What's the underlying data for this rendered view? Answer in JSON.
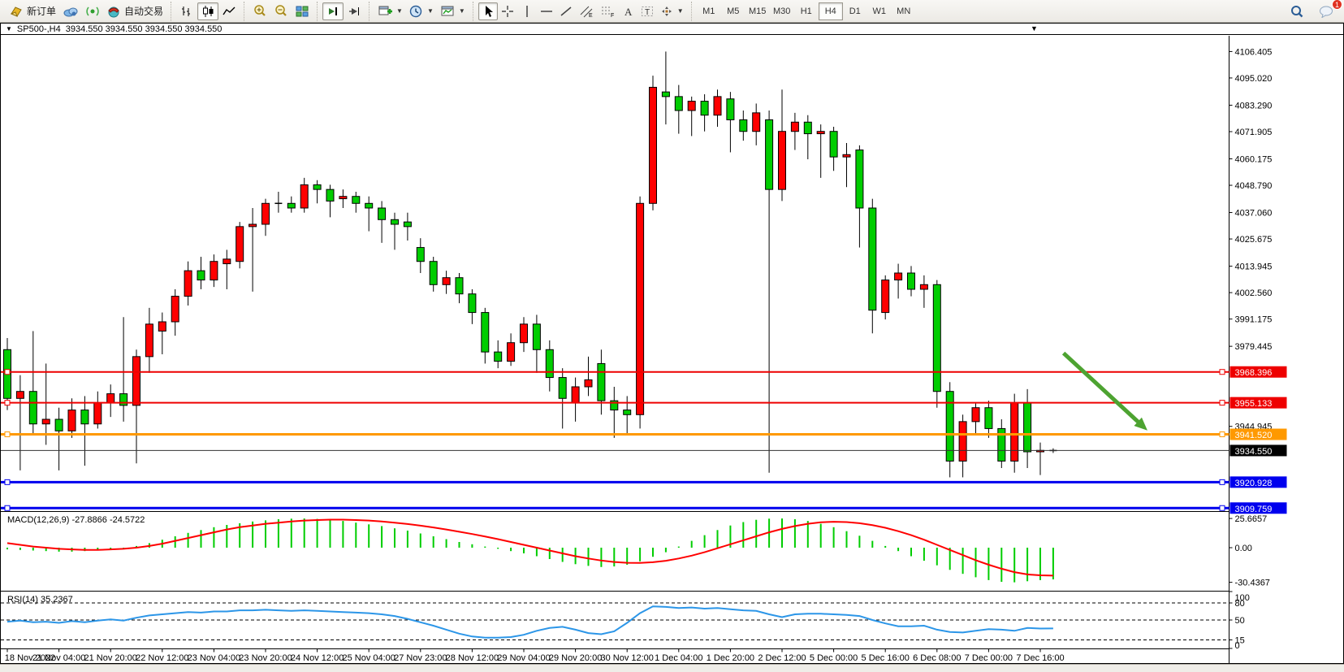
{
  "toolbar": {
    "groups": [
      {
        "items": [
          {
            "name": "new-order-button",
            "icon": "new-order",
            "label": "新订单"
          },
          {
            "name": "data-center-button",
            "icon": "cloud"
          },
          {
            "name": "signals-button",
            "icon": "broadcast"
          },
          {
            "name": "autotrading-button",
            "icon": "autotrade",
            "label": "自动交易"
          }
        ]
      },
      {
        "items": [
          {
            "name": "bar-chart-button",
            "icon": "bar-chart"
          },
          {
            "name": "candle-chart-button",
            "icon": "candle-chart",
            "pressed": true
          },
          {
            "name": "line-chart-button",
            "icon": "line-chart"
          }
        ]
      },
      {
        "items": [
          {
            "name": "zoom-in-button",
            "icon": "zoom-in"
          },
          {
            "name": "zoom-out-button",
            "icon": "zoom-out"
          },
          {
            "name": "tile-windows-button",
            "icon": "tile-windows"
          }
        ]
      },
      {
        "items": [
          {
            "name": "chart-shift-button",
            "icon": "chart-shift",
            "pressed": true
          },
          {
            "name": "auto-scroll-button",
            "icon": "auto-scroll"
          }
        ]
      },
      {
        "items": [
          {
            "name": "new-chart-button",
            "icon": "new-chart",
            "dropdown": true
          },
          {
            "name": "profiles-button",
            "icon": "clock",
            "dropdown": true
          },
          {
            "name": "indicators-button",
            "icon": "indicators",
            "dropdown": true
          }
        ]
      },
      {
        "items": [
          {
            "name": "cursor-button",
            "icon": "cursor",
            "pressed": true
          },
          {
            "name": "crosshair-button",
            "icon": "crosshair"
          },
          {
            "name": "vline-button",
            "icon": "vline"
          },
          {
            "name": "hline-button",
            "icon": "hline"
          },
          {
            "name": "trendline-button",
            "icon": "trendline"
          },
          {
            "name": "channel-button",
            "icon": "channel"
          },
          {
            "name": "fibo-button",
            "icon": "fibo"
          },
          {
            "name": "text-button",
            "icon": "text"
          },
          {
            "name": "label-button",
            "icon": "label"
          },
          {
            "name": "arrows-button",
            "icon": "arrows",
            "dropdown": true
          }
        ]
      }
    ],
    "timeframes": [
      {
        "label": "M1"
      },
      {
        "label": "M5"
      },
      {
        "label": "M15"
      },
      {
        "label": "M30"
      },
      {
        "label": "H1"
      },
      {
        "label": "H4",
        "pressed": true
      },
      {
        "label": "D1"
      },
      {
        "label": "W1"
      },
      {
        "label": "MN"
      }
    ],
    "right": [
      {
        "name": "search-button",
        "icon": "search"
      },
      {
        "name": "chat-button",
        "icon": "chat",
        "badge": "1"
      }
    ]
  },
  "chart_window": {
    "symbol_title": "SP500-,H4",
    "quotes": "3934.550 3934.550 3934.550 3934.550",
    "window_marker": "▼"
  },
  "chart_data": {
    "type": "candlestick",
    "symbol": "SP500-",
    "timeframe": "H4",
    "note": "red = bullish (CN convention), green = bearish; candles as [open,high,low,close]",
    "candles": [
      [
        3978,
        3983,
        3952,
        3957
      ],
      [
        3957,
        3967,
        3926,
        3960
      ],
      [
        3960,
        3986,
        3942,
        3946
      ],
      [
        3946,
        3972,
        3937,
        3948
      ],
      [
        3948,
        3953,
        3926,
        3943
      ],
      [
        3943,
        3957,
        3940,
        3952
      ],
      [
        3952,
        3958,
        3928,
        3946
      ],
      [
        3946,
        3960,
        3944,
        3955
      ],
      [
        3955,
        3963,
        3949,
        3959
      ],
      [
        3959,
        3992,
        3947,
        3954
      ],
      [
        3954,
        3978,
        3929,
        3975
      ],
      [
        3975,
        3996,
        3968,
        3989
      ],
      [
        3986,
        3994,
        3976,
        3990
      ],
      [
        3990,
        4004,
        3984,
        4001
      ],
      [
        4001,
        4016,
        3997,
        4012
      ],
      [
        4012,
        4018,
        4004,
        4008
      ],
      [
        4008,
        4019,
        4005,
        4016
      ],
      [
        4015,
        4021,
        4004,
        4017
      ],
      [
        4016,
        4033,
        4013,
        4031
      ],
      [
        4031,
        4039,
        4003,
        4032
      ],
      [
        4032,
        4043,
        4027,
        4041
      ],
      [
        4041,
        4046,
        4037,
        4041
      ],
      [
        4041,
        4044,
        4037,
        4039
      ],
      [
        4039,
        4052,
        4037,
        4049
      ],
      [
        4049,
        4051,
        4041,
        4047
      ],
      [
        4047,
        4049,
        4035,
        4042
      ],
      [
        4043,
        4047,
        4039,
        4044
      ],
      [
        4044,
        4046,
        4037,
        4041
      ],
      [
        4041,
        4044,
        4029,
        4039
      ],
      [
        4039,
        4042,
        4024,
        4034
      ],
      [
        4034,
        4037,
        4021,
        4032
      ],
      [
        4033,
        4037,
        4025,
        4031
      ],
      [
        4022,
        4026,
        4011,
        4016
      ],
      [
        4016,
        4018,
        4003,
        4006
      ],
      [
        4006,
        4012,
        4002,
        4009
      ],
      [
        4009,
        4011,
        3998,
        4002
      ],
      [
        4002,
        4004,
        3989,
        3994
      ],
      [
        3994,
        3996,
        3972,
        3977
      ],
      [
        3977,
        3982,
        3970,
        3973
      ],
      [
        3973,
        3985,
        3971,
        3981
      ],
      [
        3981,
        3992,
        3977,
        3989
      ],
      [
        3989,
        3993,
        3968,
        3978
      ],
      [
        3978,
        3982,
        3960,
        3966
      ],
      [
        3966,
        3970,
        3944,
        3957
      ],
      [
        3955,
        3966,
        3947,
        3962
      ],
      [
        3962,
        3975,
        3958,
        3965
      ],
      [
        3972,
        3978,
        3950,
        3956
      ],
      [
        3956,
        3962,
        3940,
        3952
      ],
      [
        3952,
        3958,
        3941,
        3950
      ],
      [
        3950,
        4044,
        3944,
        4041
      ],
      [
        4041,
        4096,
        4038,
        4091
      ],
      [
        4089,
        4106.4,
        4075,
        4087
      ],
      [
        4087,
        4092,
        4071,
        4081
      ],
      [
        4081,
        4087,
        4070,
        4085
      ],
      [
        4085,
        4088,
        4072,
        4079
      ],
      [
        4079,
        4090,
        4074,
        4087
      ],
      [
        4086,
        4089,
        4063,
        4077
      ],
      [
        4077,
        4081,
        4068,
        4072
      ],
      [
        4072,
        4084,
        4066,
        4080
      ],
      [
        4077,
        4081,
        3925,
        4047
      ],
      [
        4047,
        4090,
        4042,
        4072
      ],
      [
        4072,
        4080,
        4064,
        4076
      ],
      [
        4076,
        4079,
        4060,
        4071
      ],
      [
        4071,
        4075,
        4052,
        4072
      ],
      [
        4072,
        4074,
        4055,
        4061
      ],
      [
        4061,
        4067,
        4048,
        4062
      ],
      [
        4064,
        4066,
        4022,
        4039
      ],
      [
        4039,
        4043,
        3985,
        3995
      ],
      [
        3994,
        4010,
        3991,
        4008
      ],
      [
        4008,
        4015,
        4000,
        4011
      ],
      [
        4011,
        4014,
        4001,
        4004
      ],
      [
        4004,
        4010,
        3996,
        4006
      ],
      [
        4006,
        4008,
        3953,
        3960
      ],
      [
        3960,
        3964,
        3923,
        3930
      ],
      [
        3930,
        3950,
        3923,
        3947
      ],
      [
        3947,
        3955,
        3942,
        3953
      ],
      [
        3953,
        3956,
        3940,
        3944
      ],
      [
        3944,
        3948,
        3927,
        3930
      ],
      [
        3930,
        3959,
        3925,
        3955
      ],
      [
        3955,
        3961,
        3927,
        3934
      ],
      [
        3934,
        3938,
        3924,
        3934.6
      ],
      [
        3934.5,
        3935.5,
        3933.5,
        3934.55
      ]
    ],
    "price_axis_ticks": [
      "4106.405",
      "4095.020",
      "4083.290",
      "4071.905",
      "4060.175",
      "4048.790",
      "4037.060",
      "4025.675",
      "4013.945",
      "4002.560",
      "3991.175",
      "3979.445",
      "3944.945"
    ],
    "hlines": [
      {
        "price": 3968.396,
        "label": "3968.396",
        "color": "#EE0000",
        "width": 2
      },
      {
        "price": 3955.133,
        "label": "3955.133",
        "color": "#EE0000",
        "width": 2
      },
      {
        "price": 3941.52,
        "label": "3941.520",
        "color": "#FF9900",
        "width": 3
      },
      {
        "price": 3920.928,
        "label": "3920.928",
        "color": "#0000EE",
        "width": 3
      },
      {
        "price": 3909.759,
        "label": "3909.759",
        "color": "#0000EE",
        "width": 3
      }
    ],
    "current_price": {
      "price": 3934.55,
      "label": "3934.550",
      "color": "#000000"
    },
    "annotation_arrow": {
      "from_bar": 81.8,
      "from_price": 3976.5,
      "to_bar": 88.3,
      "to_price": 3943.2,
      "color": "#4DA331"
    },
    "macd": {
      "label": "MACD(12,26,9) -27.8866 -24.5722",
      "axis_ticks": [
        "25.6657",
        "0.00",
        "-30.4367"
      ],
      "axis_values": [
        25.6657,
        0,
        -30.4367
      ],
      "histogram": [
        -1.5,
        -2,
        -2.5,
        -3,
        -3.5,
        -3.5,
        -3,
        -2.5,
        -1.5,
        -0.5,
        1.5,
        4,
        7,
        10,
        13,
        15.5,
        18,
        20,
        21.5,
        23,
        24,
        25,
        25.5,
        25.66,
        25.3,
        24.5,
        23.5,
        22,
        20.5,
        19,
        17,
        15,
        12.5,
        10,
        7.5,
        5,
        3,
        1,
        -1,
        -3,
        -5,
        -7.5,
        -10,
        -12.5,
        -14.5,
        -16,
        -17,
        -16.5,
        -15,
        -12,
        -8,
        -4,
        1,
        6,
        11,
        15.5,
        19.5,
        22.5,
        24.5,
        25.5,
        25.66,
        25,
        23.5,
        21,
        18,
        14.5,
        10.5,
        6,
        1.5,
        -3,
        -7.5,
        -11.5,
        -15.5,
        -19.5,
        -23,
        -26,
        -28.5,
        -30,
        -30.44,
        -29.5,
        -28.5,
        -27.89
      ],
      "signal": [
        4,
        2.5,
        1,
        0,
        -1,
        -1.5,
        -2,
        -2,
        -1.5,
        -1,
        0,
        1.5,
        3.5,
        6,
        8.5,
        11,
        13.5,
        16,
        18,
        19.5,
        21,
        22,
        23,
        23.8,
        24.3,
        24.6,
        24.6,
        24.3,
        23.8,
        23,
        22,
        20.8,
        19.4,
        17.8,
        16,
        14,
        12,
        9.8,
        7.5,
        5,
        2.5,
        0,
        -2.5,
        -5,
        -7.5,
        -9.5,
        -11.3,
        -12.6,
        -13.3,
        -13.4,
        -12.8,
        -11.5,
        -9.5,
        -7,
        -4,
        -0.5,
        3,
        6.5,
        10,
        13.5,
        16.5,
        19,
        21,
        22.3,
        22.8,
        22.5,
        21.5,
        19.8,
        17.5,
        14.5,
        11,
        7,
        2.5,
        -2,
        -6.5,
        -11,
        -15,
        -18.5,
        -21.5,
        -23.5,
        -24.3,
        -24.57
      ]
    },
    "rsi": {
      "label": "RSI(14) 35.2367",
      "axis_ticks": [
        "100",
        "80",
        "50",
        "15",
        "0"
      ],
      "axis_values": [
        100,
        80,
        50,
        15,
        0
      ],
      "levels": [
        80,
        50,
        15
      ],
      "values": [
        47,
        49,
        46,
        47,
        45,
        48,
        46,
        49,
        51,
        49,
        54,
        58,
        60,
        62,
        64,
        63,
        65,
        65,
        67,
        67,
        68,
        67,
        66,
        67,
        66,
        65,
        64,
        63,
        62,
        60,
        57,
        52,
        46,
        40,
        33,
        26,
        21,
        19,
        19,
        20,
        24,
        31,
        36,
        38,
        33,
        27,
        25,
        30,
        45,
        62,
        74,
        73,
        71,
        72,
        70,
        71,
        69,
        67,
        66,
        60,
        55,
        60,
        61,
        61,
        60,
        59,
        57,
        50,
        44,
        39,
        39,
        40,
        33,
        29,
        28,
        31,
        34,
        33,
        31,
        36,
        35,
        35.24
      ]
    },
    "time_labels": [
      "18 Nov 2022",
      "21 Nov 04:00",
      "21 Nov 20:00",
      "22 Nov 12:00",
      "23 Nov 04:00",
      "23 Nov 20:00",
      "24 Nov 12:00",
      "25 Nov 04:00",
      "27 Nov 23:00",
      "28 Nov 12:00",
      "29 Nov 04:00",
      "29 Nov 20:00",
      "30 Nov 12:00",
      "1 Dec 04:00",
      "1 Dec 20:00",
      "2 Dec 12:00",
      "5 Dec 00:00",
      "5 Dec 16:00",
      "6 Dec 08:00",
      "7 Dec 00:00",
      "7 Dec 16:00"
    ],
    "colors": {
      "bull": "#FF0000",
      "bear": "#00CD00",
      "wick": "#000000",
      "macd_hist": "#00CD00",
      "macd_signal": "#FF0000",
      "rsi_line": "#2C96E8"
    }
  }
}
